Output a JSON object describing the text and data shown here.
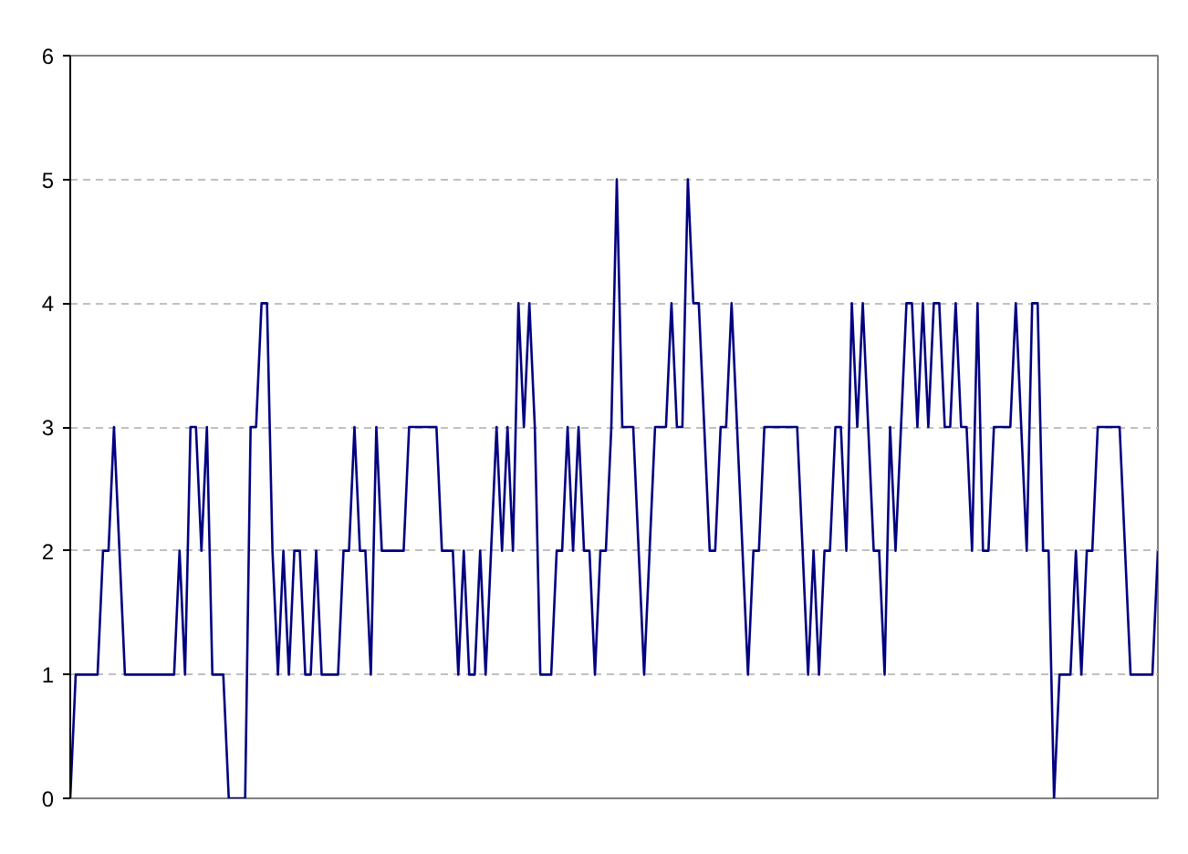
{
  "chart_data": {
    "type": "line",
    "categories": [
      null,
      null,
      null,
      null,
      null,
      null,
      null,
      null,
      null,
      null,
      null,
      null,
      null,
      null,
      null,
      null,
      null,
      null,
      null,
      null,
      null,
      null,
      null,
      null,
      null,
      null,
      null,
      null,
      null,
      null,
      null,
      null,
      null,
      null,
      null,
      null,
      null,
      null,
      null,
      null,
      null,
      null,
      null,
      null,
      null,
      null,
      null,
      null,
      null,
      null,
      null,
      null,
      null,
      null,
      null,
      null,
      null,
      null,
      null,
      null,
      null,
      null,
      null,
      null,
      null,
      null,
      null,
      null,
      null,
      null,
      null,
      null,
      null,
      null,
      null,
      null,
      null,
      null,
      null,
      null,
      null,
      null,
      null,
      null,
      null,
      null,
      null,
      null,
      null,
      null,
      null,
      null,
      null,
      null,
      null,
      null,
      null,
      null,
      null,
      null,
      null,
      null,
      null,
      null,
      null,
      null,
      null,
      null,
      null,
      null,
      null,
      null,
      null,
      null,
      null,
      null,
      null,
      null,
      null,
      null,
      null,
      null,
      null,
      null,
      null,
      null,
      null,
      null,
      null,
      null,
      null,
      null,
      null,
      null,
      null,
      null,
      null,
      null,
      null,
      null,
      null,
      null,
      null,
      null,
      null,
      null,
      null,
      null,
      null,
      null,
      null,
      null,
      null,
      null,
      null,
      null,
      null,
      null,
      null,
      null,
      null,
      null,
      null,
      null,
      null,
      null,
      null,
      null,
      null,
      null,
      null,
      null,
      null,
      null,
      null,
      null,
      null,
      null,
      null,
      null,
      null,
      null,
      null,
      null,
      null,
      null,
      null,
      null,
      null,
      null,
      null,
      null,
      null,
      null,
      null,
      null,
      null,
      null,
      null,
      null
    ],
    "series": [
      {
        "color": "#000080",
        "values": [
          0,
          1,
          1,
          1,
          1,
          1,
          2,
          2,
          3,
          2,
          1,
          1,
          1,
          1,
          1,
          1,
          1,
          1,
          1,
          1,
          2,
          1,
          3,
          3,
          2,
          3,
          1,
          1,
          1,
          0,
          0,
          0,
          0,
          3,
          3,
          4,
          4,
          2,
          1,
          2,
          1,
          2,
          2,
          1,
          1,
          2,
          1,
          1,
          1,
          1,
          2,
          2,
          3,
          2,
          2,
          1,
          3,
          2,
          2,
          2,
          2,
          2,
          3,
          3,
          3,
          3,
          3,
          3,
          2,
          2,
          2,
          1,
          2,
          1,
          1,
          2,
          1,
          2,
          3,
          2,
          3,
          2,
          4,
          3,
          4,
          3,
          1,
          1,
          1,
          2,
          2,
          3,
          2,
          3,
          2,
          2,
          1,
          2,
          2,
          3,
          5,
          3,
          3,
          3,
          2,
          1,
          2,
          3,
          3,
          3,
          4,
          3,
          3,
          5,
          4,
          4,
          3,
          2,
          2,
          3,
          3,
          4,
          3,
          2,
          1,
          2,
          2,
          3,
          3,
          3,
          3,
          3,
          3,
          3,
          2,
          1,
          2,
          1,
          2,
          2,
          3,
          3,
          2,
          4,
          3,
          4,
          3,
          2,
          2,
          1,
          3,
          2,
          3,
          4,
          4,
          3,
          4,
          3,
          4,
          4,
          3,
          3,
          4,
          3,
          3,
          2,
          4,
          2,
          2,
          3,
          3,
          3,
          3,
          4,
          3,
          2,
          4,
          4,
          2,
          2,
          0,
          1,
          1,
          1,
          2,
          1,
          2,
          2,
          3,
          3,
          3,
          3,
          3,
          2,
          1,
          1,
          1,
          1,
          1,
          2
        ]
      }
    ],
    "ylim": [
      0,
      6
    ],
    "yticks": [
      0,
      1,
      2,
      3,
      4,
      5,
      6
    ],
    "grid": "y"
  }
}
